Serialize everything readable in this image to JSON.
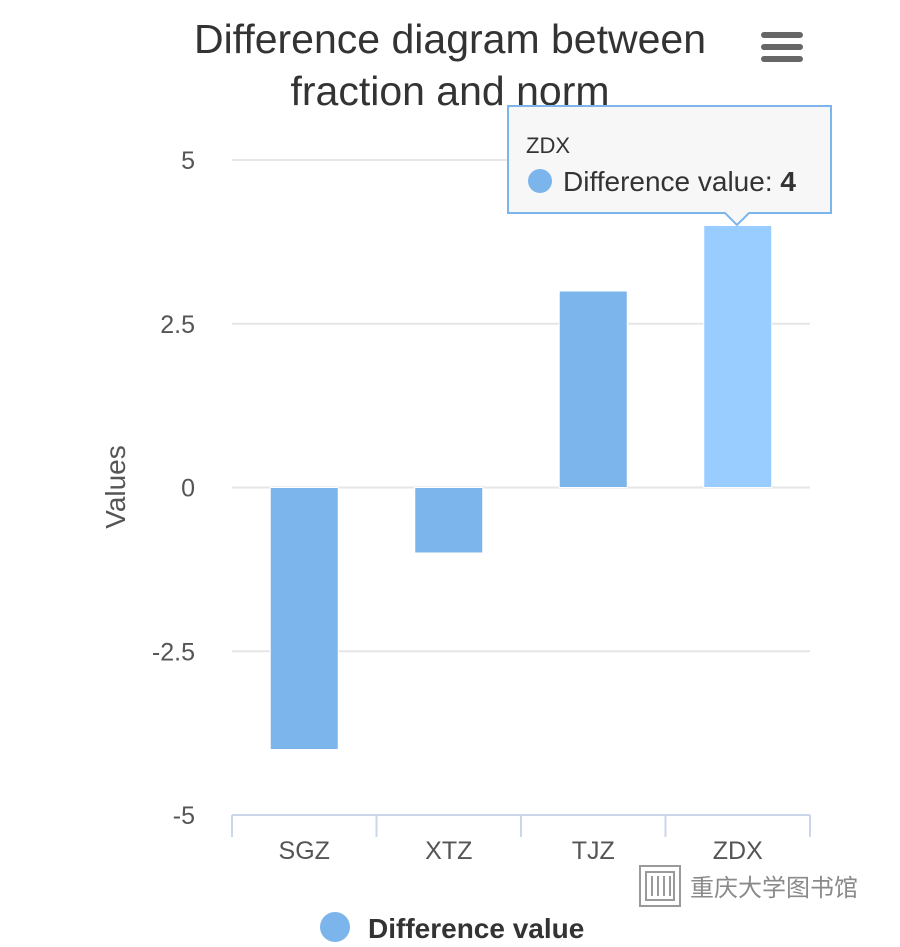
{
  "chart_data": {
    "type": "bar",
    "title": "Difference diagram between fraction and norm",
    "title_lines": [
      "Difference diagram between",
      "fraction and norm"
    ],
    "ylabel": "Values",
    "xlabel": "",
    "categories": [
      "SGZ",
      "XTZ",
      "TJZ",
      "ZDX"
    ],
    "series": [
      {
        "name": "Difference value",
        "values": [
          -4,
          -1,
          3,
          4
        ]
      }
    ],
    "ylim": [
      -5,
      5
    ],
    "yticks": [
      5,
      2.5,
      0,
      -2.5,
      -5
    ],
    "ytick_labels": [
      "5",
      "2.5",
      "0",
      "-2.5",
      "-5"
    ],
    "grid": true,
    "legend": "bottom-center",
    "colors": {
      "bar": "#7cb5ec",
      "bar_hover": "#99ccff",
      "grid": "#e6e6e6",
      "axis": "#ccd6eb"
    },
    "highlighted_category": "ZDX",
    "tooltip": {
      "header": "ZDX",
      "series_label": "Difference value",
      "value": "4"
    }
  },
  "menu": {
    "icon": "hamburger-menu-icon"
  },
  "watermark": {
    "text": "重庆大学图书馆",
    "icon": "library-logo-icon"
  }
}
